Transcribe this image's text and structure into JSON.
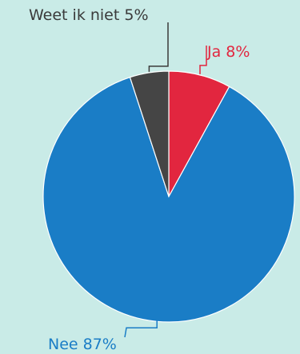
{
  "chart_data": {
    "type": "pie",
    "slices": [
      {
        "label": "Ja 8%",
        "value": 8,
        "color": "#e2263f"
      },
      {
        "label": "Nee 87%",
        "value": 87,
        "color": "#1a7dc6"
      },
      {
        "label": "Weet ik niet 5%",
        "value": 5,
        "color": "#454545"
      }
    ],
    "label_colors": [
      "#e2263f",
      "#1a7dc6",
      "#3a3a3a"
    ],
    "background": "#c9ebe7"
  }
}
